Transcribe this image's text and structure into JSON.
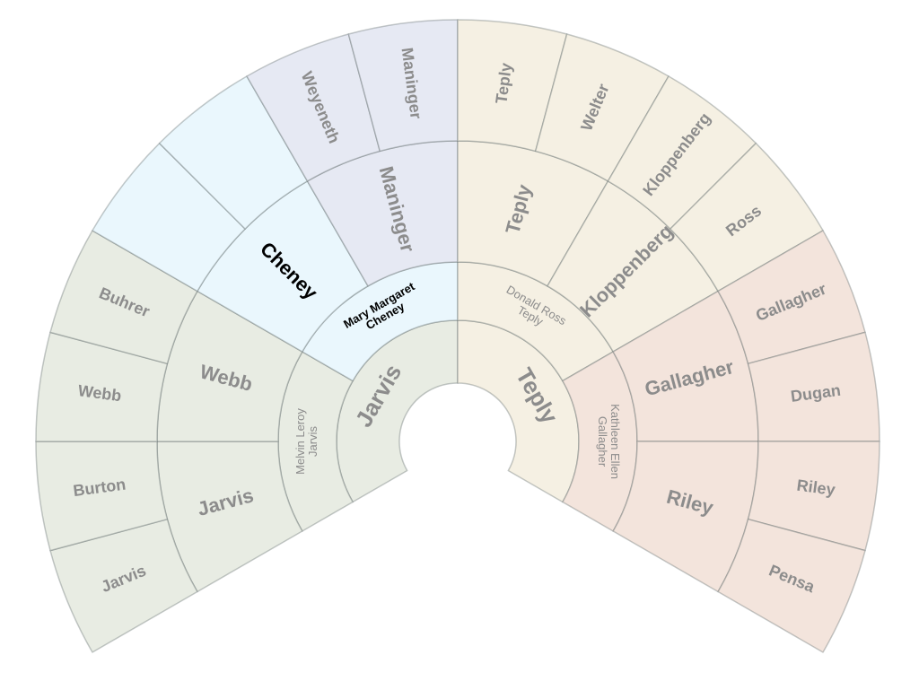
{
  "rings": [
    {
      "segments": [
        {
          "lines": [
            "Jarvis"
          ],
          "color": "#e8ece3"
        },
        {
          "lines": [
            "Teply"
          ],
          "color": "#f5f0e3"
        }
      ]
    },
    {
      "segments": [
        {
          "lines": [
            "Melvin Leroy",
            "Jarvis"
          ],
          "color": "#e8ece3"
        },
        {
          "lines": [
            "Mary Margaret",
            "Cheney"
          ],
          "color": "#eaf7fd",
          "highlight": true
        },
        {
          "lines": [
            "Donald Ross",
            "Teply"
          ],
          "color": "#f5f0e3"
        },
        {
          "lines": [
            "Kathleen Ellen",
            "Gallagher"
          ],
          "color": "#f3e4dc"
        }
      ]
    },
    {
      "segments": [
        {
          "lines": [
            "Jarvis"
          ],
          "color": "#e8ece3"
        },
        {
          "lines": [
            "Webb"
          ],
          "color": "#e8ece3"
        },
        {
          "lines": [
            "Cheney"
          ],
          "color": "#eaf7fd",
          "highlight": true
        },
        {
          "lines": [
            "Maninger"
          ],
          "color": "#e6e9f3"
        },
        {
          "lines": [
            "Teply"
          ],
          "color": "#f5f0e3"
        },
        {
          "lines": [
            "Kloppenberg"
          ],
          "color": "#f5f0e3"
        },
        {
          "lines": [
            "Gallagher"
          ],
          "color": "#f3e4dc"
        },
        {
          "lines": [
            "Riley"
          ],
          "color": "#f3e4dc"
        }
      ]
    },
    {
      "segments": [
        {
          "lines": [
            "Jarvis"
          ],
          "color": "#e8ece3"
        },
        {
          "lines": [
            "Burton"
          ],
          "color": "#e8ece3"
        },
        {
          "lines": [
            "Webb"
          ],
          "color": "#e8ece3"
        },
        {
          "lines": [
            "Buhrer"
          ],
          "color": "#e8ece3"
        },
        {
          "lines": null,
          "color": "#eaf7fd"
        },
        {
          "lines": null,
          "color": "#eaf7fd"
        },
        {
          "lines": [
            "Weyeneth"
          ],
          "color": "#e6e9f3"
        },
        {
          "lines": [
            "Maninger"
          ],
          "color": "#e6e9f3"
        },
        {
          "lines": [
            "Teply"
          ],
          "color": "#f5f0e3"
        },
        {
          "lines": [
            "Welter"
          ],
          "color": "#f5f0e3"
        },
        {
          "lines": [
            "Kloppenberg"
          ],
          "color": "#f5f0e3"
        },
        {
          "lines": [
            "Ross"
          ],
          "color": "#f5f0e3"
        },
        {
          "lines": [
            "Gallagher"
          ],
          "color": "#f3e4dc"
        },
        {
          "lines": [
            "Dugan"
          ],
          "color": "#f3e4dc"
        },
        {
          "lines": [
            "Riley"
          ],
          "color": "#f3e4dc"
        },
        {
          "lines": [
            "Pensa"
          ],
          "color": "#f3e4dc"
        }
      ]
    }
  ]
}
